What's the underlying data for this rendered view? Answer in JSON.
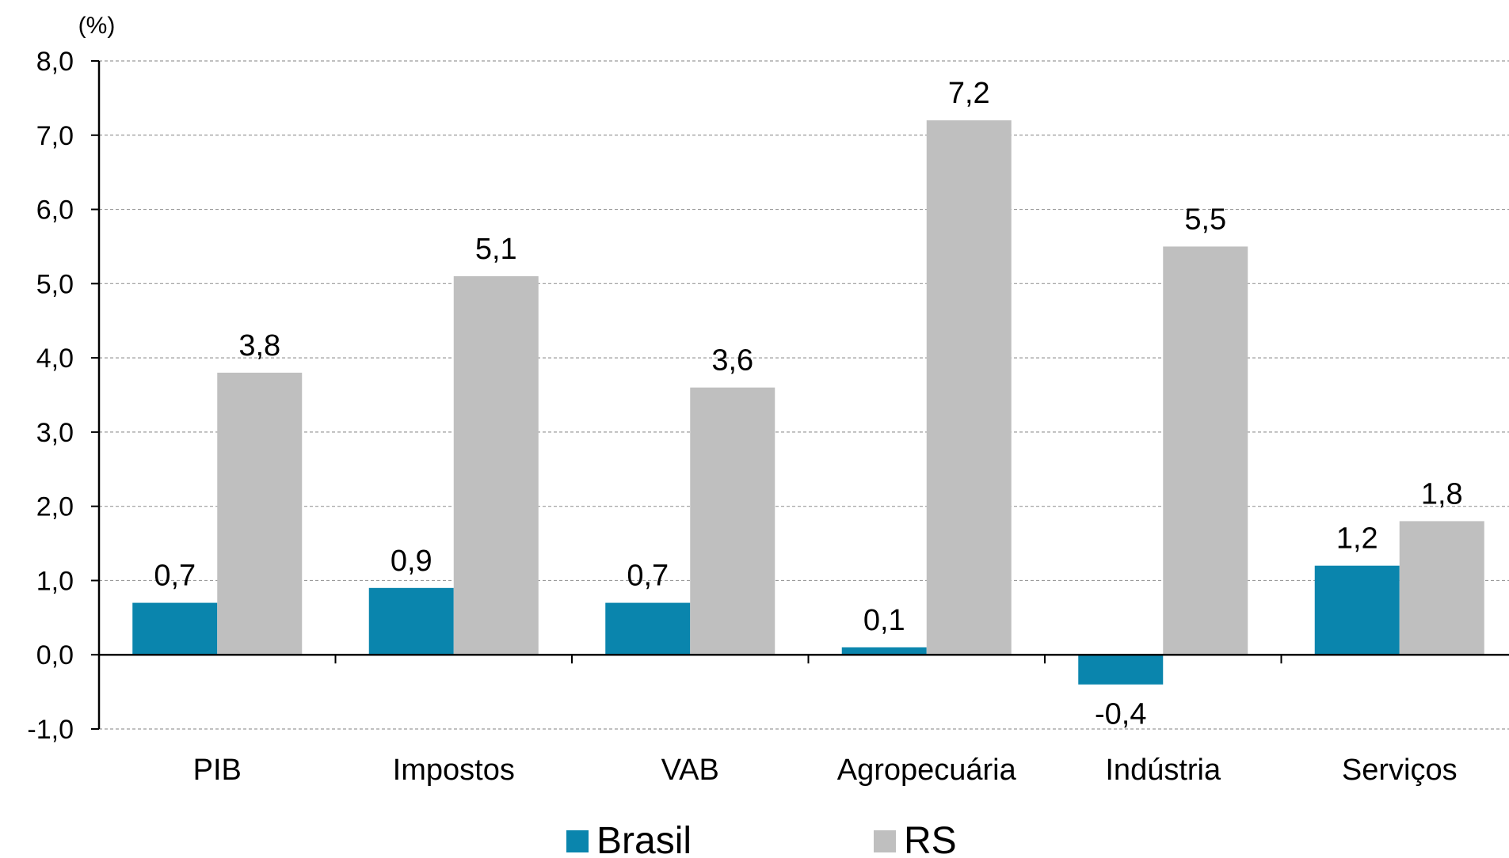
{
  "chart_data": {
    "type": "bar",
    "unit_label": "(%)",
    "categories": [
      "PIB",
      "Impostos",
      "VAB",
      "Agropecuária",
      "Indústria",
      "Serviços"
    ],
    "series": [
      {
        "name": "Brasil",
        "color": "#0a85ad",
        "values": [
          0.7,
          0.9,
          0.7,
          0.1,
          -0.4,
          1.2
        ],
        "labels": [
          "0,7",
          "0,9",
          "0,7",
          "0,1",
          "-0,4",
          "1,2"
        ]
      },
      {
        "name": "RS",
        "color": "#bfbfbf",
        "values": [
          3.8,
          5.1,
          3.6,
          7.2,
          5.5,
          1.8
        ],
        "labels": [
          "3,8",
          "5,1",
          "3,6",
          "7,2",
          "5,5",
          "1,8"
        ]
      }
    ],
    "ylim": [
      -1,
      8
    ],
    "yticks": [
      8,
      7,
      6,
      5,
      4,
      3,
      2,
      1,
      0,
      -1
    ],
    "ytick_labels": [
      "8,0",
      "7,0",
      "6,0",
      "5,0",
      "4,0",
      "3,0",
      "2,0",
      "1,0",
      "0,0",
      "-1,0"
    ],
    "grid": true,
    "legend_position": "bottom-center"
  }
}
